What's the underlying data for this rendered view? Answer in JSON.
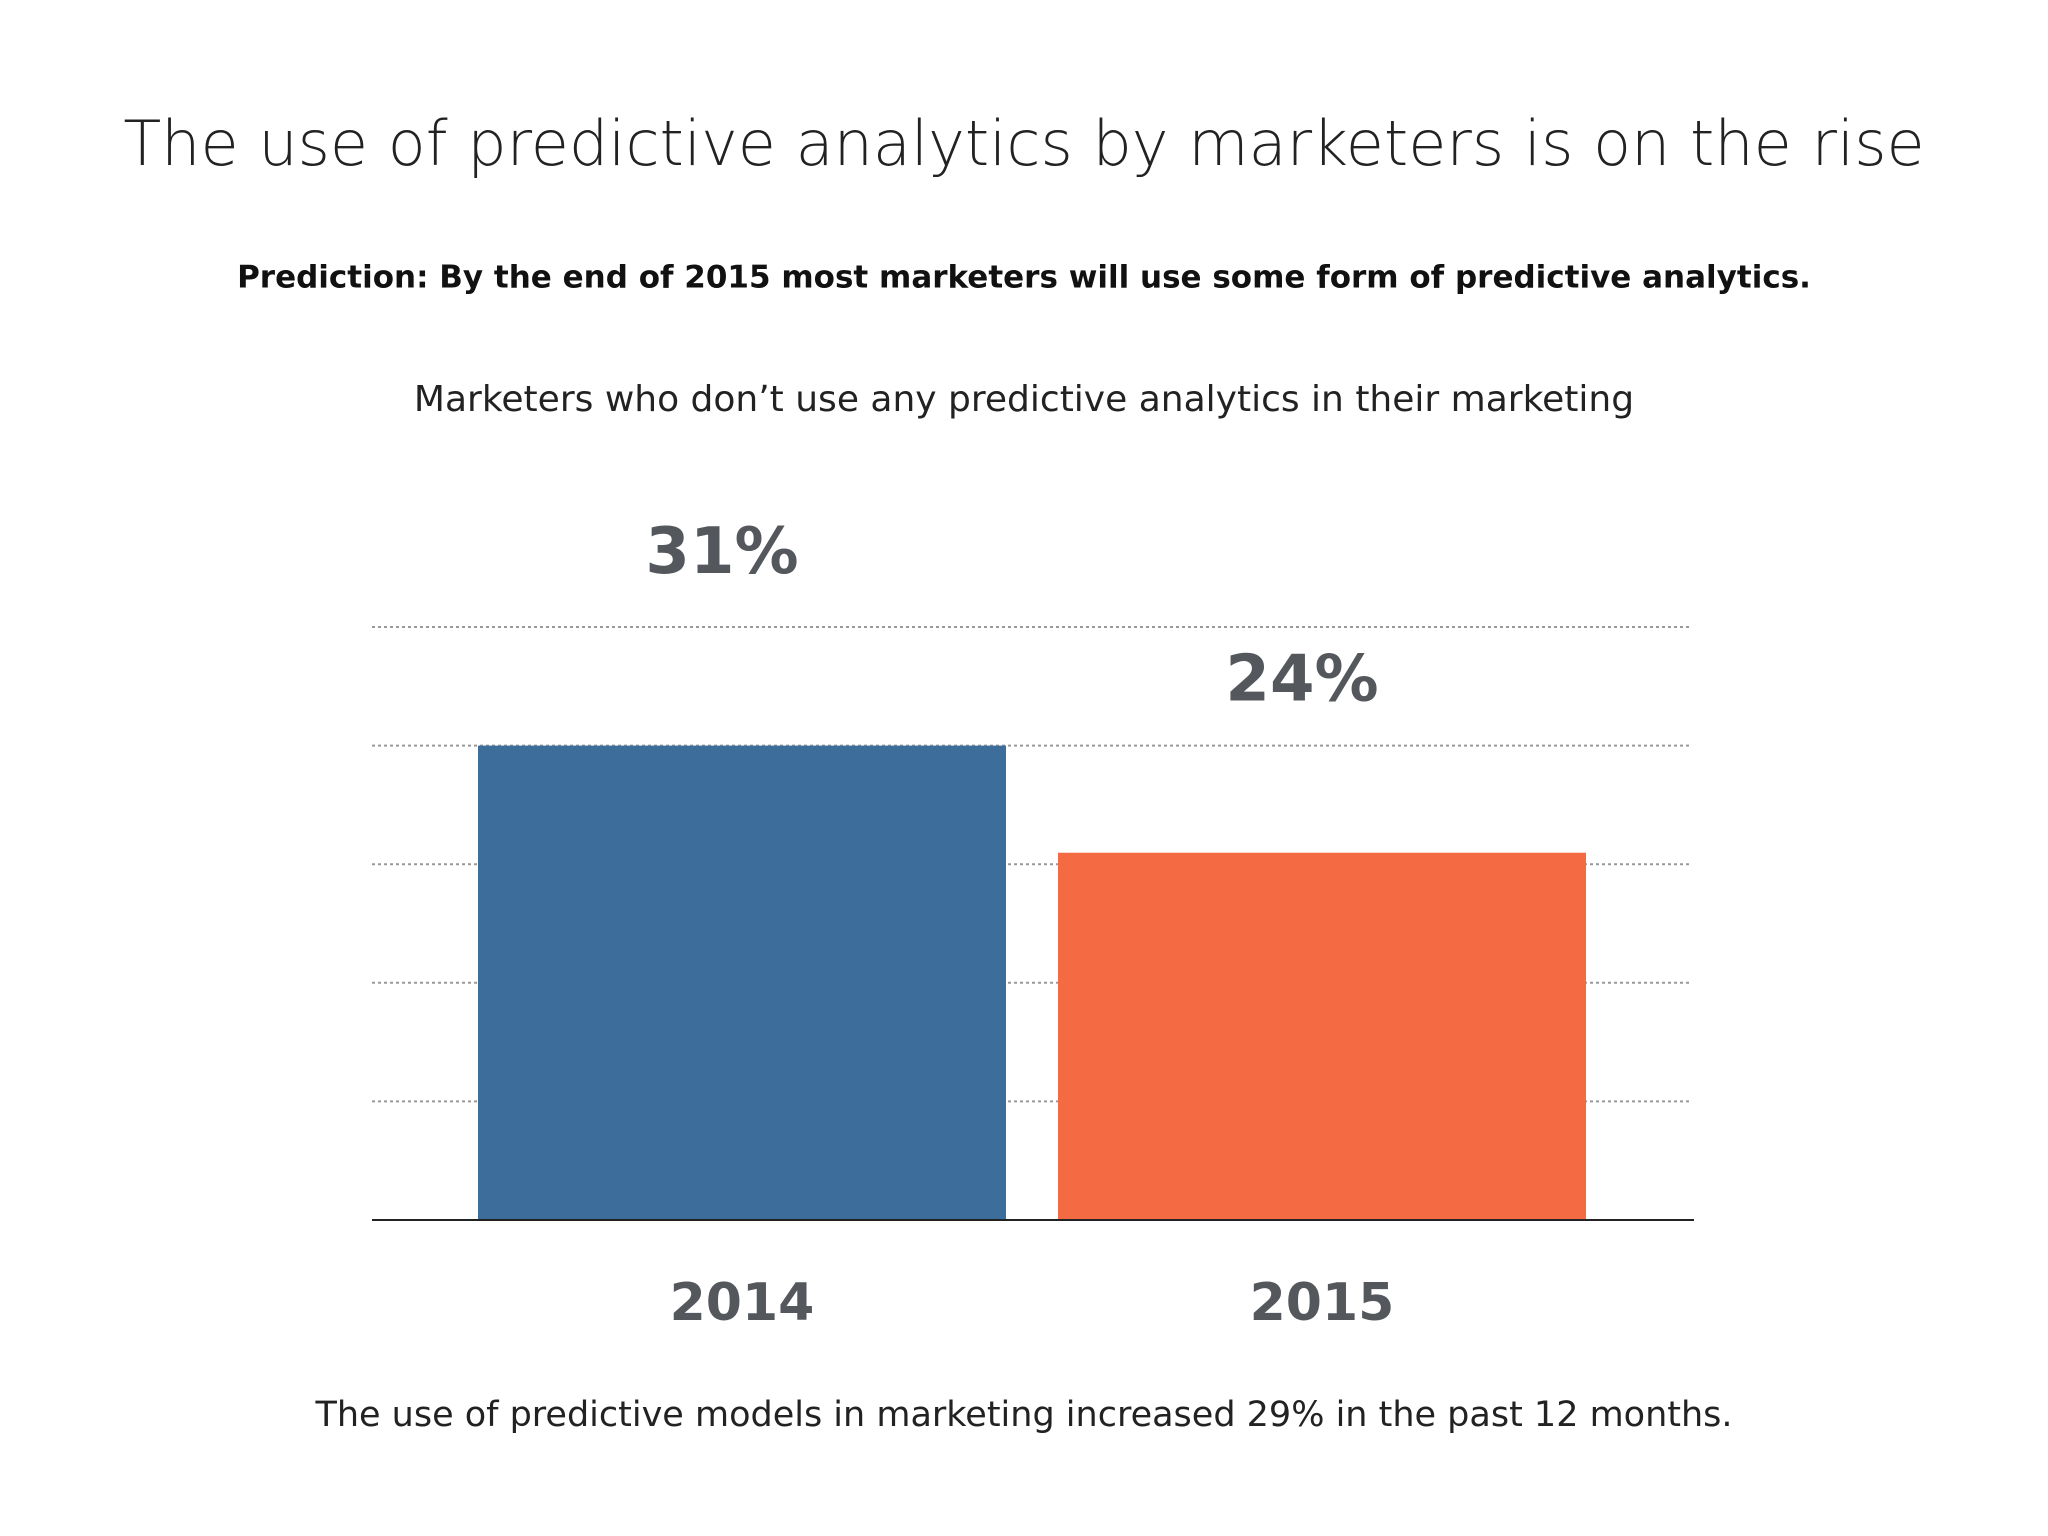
{
  "chart_data": {
    "type": "bar",
    "title": "The use of predictive analytics by marketers is on the rise",
    "subtitle": "Prediction: By the end of 2015 most marketers will use some form of predictive analytics.",
    "chart_label": "Marketers who don’t use any predictive analytics in their marketing",
    "footnote": "The use of predictive models in marketing increased 29% in the past 12 months.",
    "categories": [
      "2014",
      "2015"
    ],
    "values": [
      31,
      24
    ],
    "value_labels": [
      "31%",
      "24%"
    ],
    "colors": [
      "#3d6d9a",
      "#f46a43"
    ],
    "ylim": [
      0,
      38.75
    ],
    "yticks": [
      0,
      7.75,
      15.5,
      23.25,
      31,
      38.75
    ],
    "grid": true
  }
}
